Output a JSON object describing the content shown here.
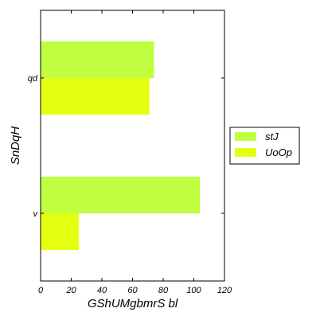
{
  "chart_data": {
    "type": "bar",
    "orientation": "horizontal",
    "categories": [
      "qd",
      "v"
    ],
    "series": [
      {
        "name": "stJ",
        "color": "#bfff3f",
        "values": [
          74,
          104
        ]
      },
      {
        "name": "UoOp",
        "color": "#e5ff12",
        "values": [
          71,
          25
        ]
      }
    ],
    "xlabel": "GShUMgbmrS bl",
    "ylabel": "SnDqH",
    "xlim": [
      0,
      120
    ],
    "xticks": [
      "0",
      "20",
      "40",
      "60",
      "80",
      "100",
      "120"
    ],
    "grid": false,
    "legend": "right"
  }
}
